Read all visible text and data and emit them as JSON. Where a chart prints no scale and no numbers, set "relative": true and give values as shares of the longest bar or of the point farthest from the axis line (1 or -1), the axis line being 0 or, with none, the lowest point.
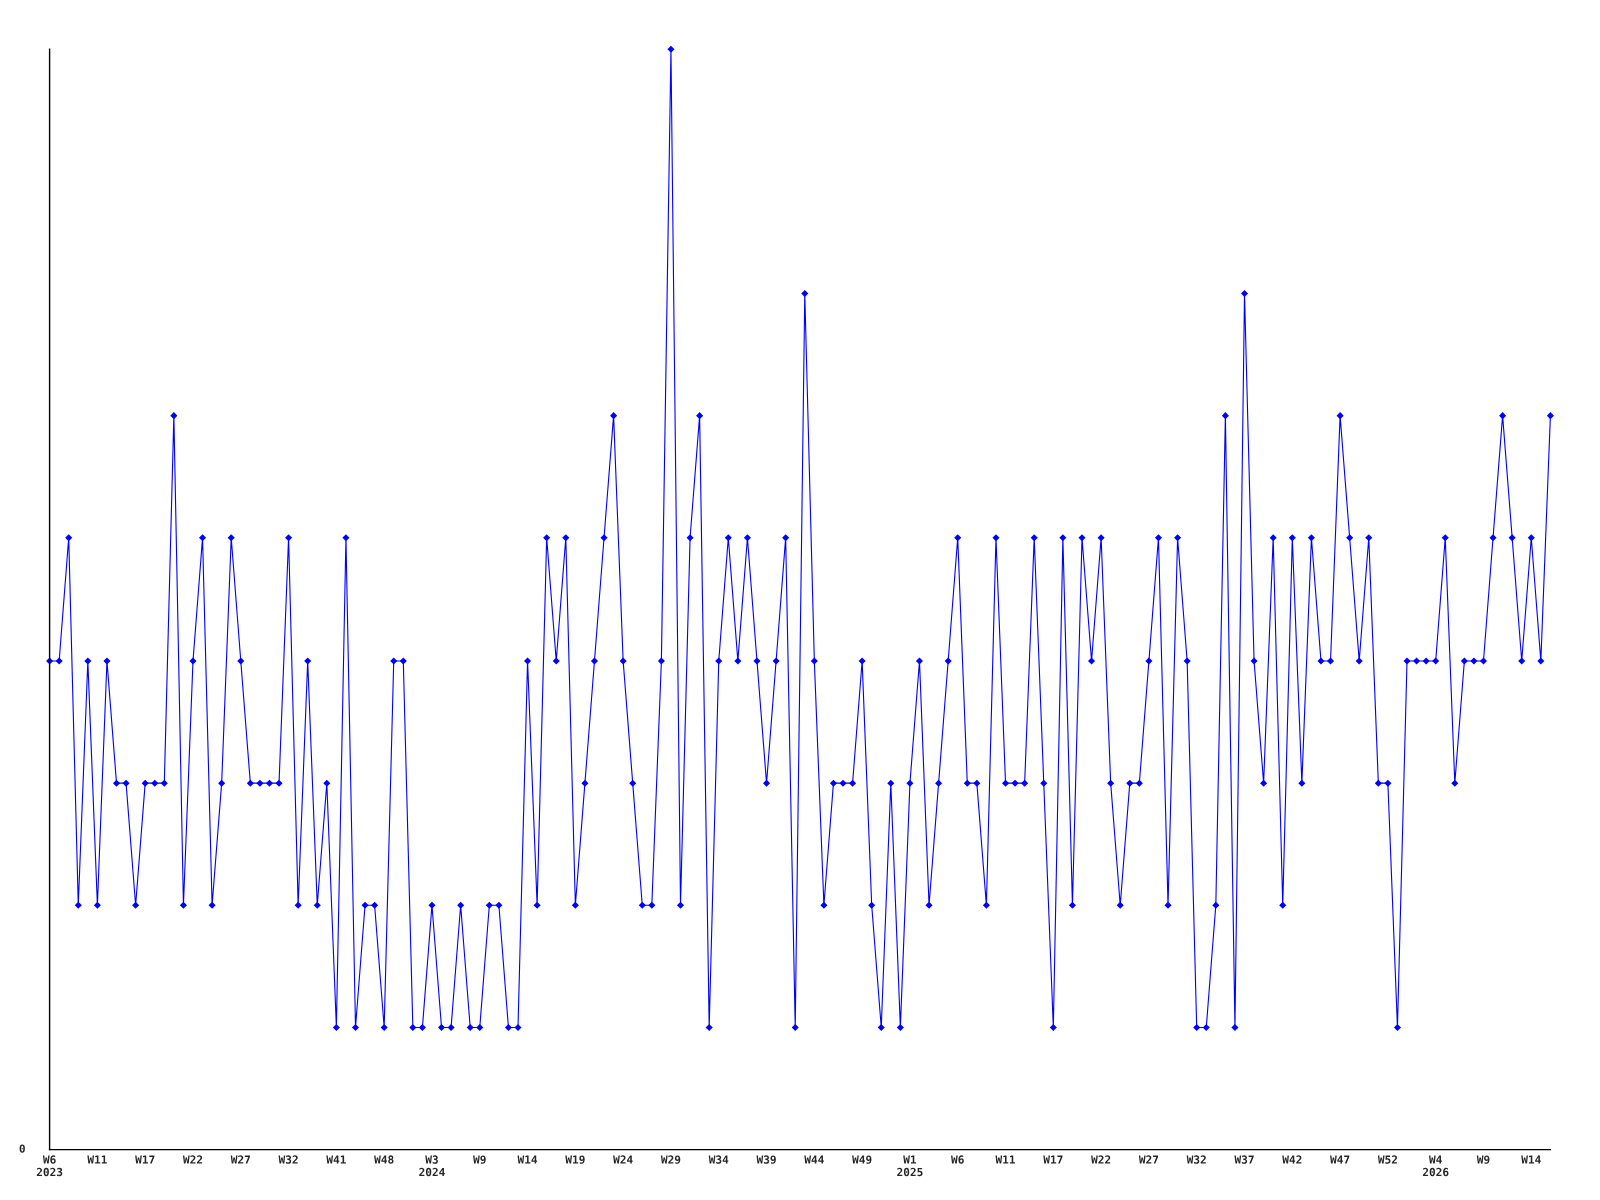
{
  "chart_data": {
    "type": "line",
    "relative": true,
    "color": "#0000ff",
    "marker": "diamond",
    "line_style": "solid",
    "annotations": [
      "0"
    ],
    "categories": [
      "W6\n2023",
      null,
      null,
      null,
      null,
      "W11",
      null,
      null,
      null,
      null,
      "W17",
      null,
      null,
      null,
      null,
      "W22",
      null,
      null,
      null,
      null,
      "W27",
      null,
      null,
      null,
      null,
      "W32",
      null,
      null,
      null,
      null,
      "W41",
      null,
      null,
      null,
      null,
      "W48",
      null,
      null,
      null,
      null,
      "W3\n2024",
      null,
      null,
      null,
      null,
      "W9",
      null,
      null,
      null,
      null,
      "W14",
      null,
      null,
      null,
      null,
      "W19",
      null,
      null,
      null,
      null,
      "W24",
      null,
      null,
      null,
      null,
      "W29",
      null,
      null,
      null,
      null,
      "W34",
      null,
      null,
      null,
      null,
      "W39",
      null,
      null,
      null,
      null,
      "W44",
      null,
      null,
      null,
      null,
      "W49",
      null,
      null,
      null,
      null,
      "W1\n2025",
      null,
      null,
      null,
      null,
      "W6",
      null,
      null,
      null,
      null,
      "W11",
      null,
      null,
      null,
      null,
      "W17",
      null,
      null,
      null,
      null,
      "W22",
      null,
      null,
      null,
      null,
      "W27",
      null,
      null,
      null,
      null,
      "W32",
      null,
      null,
      null,
      null,
      "W37",
      null,
      null,
      null,
      null,
      "W42",
      null,
      null,
      null,
      null,
      "W47",
      null,
      null,
      null,
      null,
      "W52",
      null,
      null,
      null,
      null,
      "W4\n2026",
      null,
      null,
      null,
      null,
      "W9",
      null,
      null,
      null,
      null,
      "W14",
      null,
      null
    ],
    "values": [
      0.444,
      0.444,
      0.556,
      0.222,
      0.444,
      0.222,
      0.444,
      0.333,
      0.333,
      0.222,
      0.333,
      0.333,
      0.333,
      0.667,
      0.222,
      0.444,
      0.556,
      0.222,
      0.333,
      0.556,
      0.444,
      0.333,
      0.333,
      0.333,
      0.333,
      0.556,
      0.222,
      0.444,
      0.222,
      0.333,
      0.111,
      0.556,
      0.111,
      0.222,
      0.222,
      0.111,
      0.444,
      0.444,
      0.111,
      0.111,
      0.222,
      0.111,
      0.111,
      0.222,
      0.111,
      0.111,
      0.222,
      0.222,
      0.111,
      0.111,
      0.444,
      0.222,
      0.556,
      0.444,
      0.556,
      0.222,
      0.333,
      0.444,
      0.556,
      0.667,
      0.444,
      0.333,
      0.222,
      0.222,
      0.444,
      1,
      0.222,
      0.556,
      0.667,
      0.111,
      0.444,
      0.556,
      0.444,
      0.556,
      0.444,
      0.333,
      0.444,
      0.556,
      0.111,
      0.778,
      0.444,
      0.222,
      0.333,
      0.333,
      0.333,
      0.444,
      0.222,
      0.111,
      0.333,
      0.111,
      0.333,
      0.444,
      0.222,
      0.333,
      0.444,
      0.556,
      0.333,
      0.333,
      0.222,
      0.556,
      0.333,
      0.333,
      0.333,
      0.556,
      0.333,
      0.111,
      0.556,
      0.222,
      0.556,
      0.444,
      0.556,
      0.333,
      0.222,
      0.333,
      0.333,
      0.444,
      0.556,
      0.222,
      0.556,
      0.444,
      0.111,
      0.111,
      0.222,
      0.667,
      0.111,
      0.778,
      0.444,
      0.333,
      0.556,
      0.222,
      0.556,
      0.333,
      0.556,
      0.444,
      0.444,
      0.667,
      0.556,
      0.444,
      0.556,
      0.333,
      0.333,
      0.111,
      0.444,
      0.444,
      0.444,
      0.444,
      0.556,
      0.333,
      0.444,
      0.444,
      0.444,
      0.556,
      0.667,
      0.556,
      0.444,
      0.556,
      0.444,
      0.667
    ]
  }
}
